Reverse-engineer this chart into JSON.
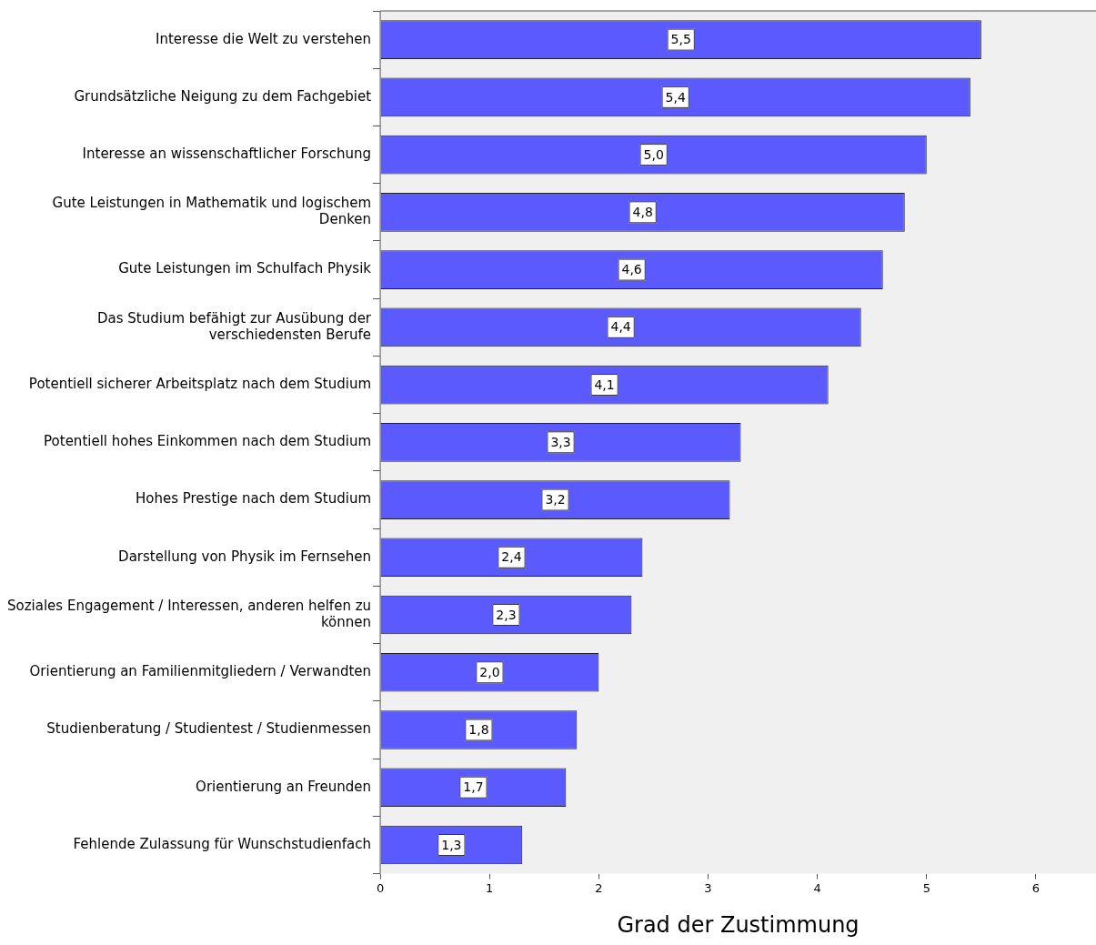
{
  "chart_data": {
    "type": "bar",
    "orientation": "horizontal",
    "xlabel": "Grad der Zustimmung",
    "categories": [
      "Interesse die Welt zu verstehen",
      "Grundsätzliche Neigung zu dem Fachgebiet",
      "Interesse an wissenschaftlicher Forschung",
      "Gute Leistungen in Mathematik und logischem\nDenken",
      "Gute Leistungen im Schulfach Physik",
      "Das Studium befähigt zur Ausübung der\nverschiedensten Berufe",
      "Potentiell sicherer Arbeitsplatz nach dem Studium",
      "Potentiell hohes Einkommen nach dem Studium",
      "Hohes Prestige nach dem Studium",
      "Darstellung von Physik im Fernsehen",
      "Soziales Engagement / Interessen, anderen helfen zu\nkönnen",
      "Orientierung an Familienmitgliedern / Verwandten",
      "Studienberatung / Studientest / Studienmessen",
      "Orientierung an Freunden",
      "Fehlende Zulassung für Wunschstudienfach"
    ],
    "values": [
      5.5,
      5.4,
      5.0,
      4.8,
      4.6,
      4.4,
      4.1,
      3.3,
      3.2,
      2.4,
      2.3,
      2.0,
      1.8,
      1.7,
      1.3
    ],
    "value_labels": [
      "5,5",
      "5,4",
      "5,0",
      "4,8",
      "4,6",
      "4,4",
      "4,1",
      "3,3",
      "3,2",
      "2,4",
      "2,3",
      "2,0",
      "1,8",
      "1,7",
      "1,3"
    ],
    "color": "#5a5aff",
    "xlim": [
      0,
      6.55
    ],
    "xticks": [
      0,
      1,
      2,
      3,
      4,
      5,
      6
    ],
    "grid": false,
    "legend": false
  }
}
